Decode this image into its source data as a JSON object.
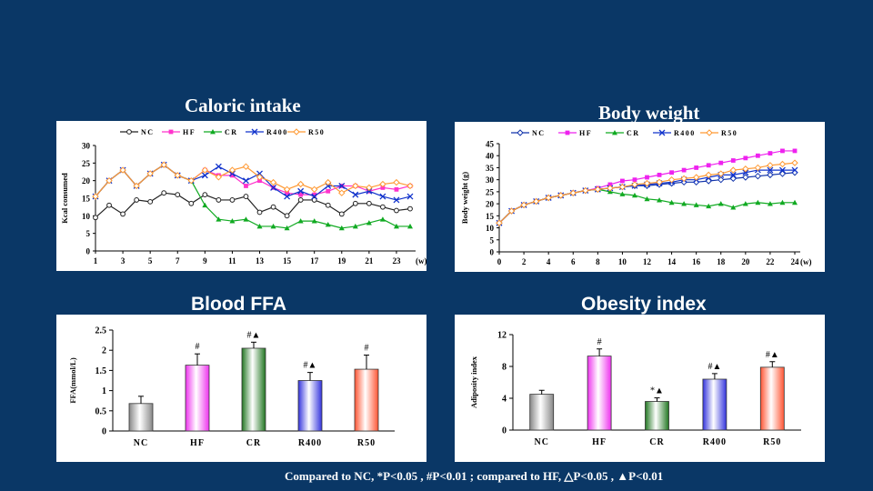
{
  "titles": {
    "caloric": "Caloric intake",
    "body_weight": "Body weight",
    "ffa": "Blood FFA",
    "obesity": "Obesity index"
  },
  "footnote": "Compared to NC, *P<0.05 , #P<0.01 ; compared to HF, △P<0.05 , ▲P<0.01",
  "chart_data": [
    {
      "id": "caloric",
      "type": "line",
      "title": "Caloric intake",
      "ylabel": "Kcal consumed",
      "xunit": "(w)",
      "ylim": [
        0,
        30
      ],
      "yticks": [
        0,
        5,
        10,
        15,
        20,
        25,
        30
      ],
      "xlim": [
        1,
        24
      ],
      "xticks": [
        1,
        3,
        5,
        7,
        9,
        11,
        13,
        15,
        17,
        19,
        21,
        23
      ],
      "x": [
        1,
        2,
        3,
        4,
        5,
        6,
        7,
        8,
        9,
        10,
        11,
        12,
        13,
        14,
        15,
        16,
        17,
        18,
        19,
        20,
        21,
        22,
        23,
        24
      ],
      "legend_position": "top",
      "series": [
        {
          "name": "NC",
          "color": "#222222",
          "marker": "circle",
          "values": [
            9.5,
            13,
            10.5,
            14.5,
            14,
            16.5,
            16,
            13.5,
            16,
            14.5,
            14.5,
            15.5,
            11,
            12.5,
            10,
            14.5,
            14.5,
            13,
            10.5,
            13.5,
            13.5,
            12.5,
            11.5,
            12
          ]
        },
        {
          "name": "HF",
          "color": "#ff33cc",
          "marker": "square",
          "values": [
            15.5,
            20,
            23,
            18.5,
            22,
            24.5,
            21.5,
            20,
            23,
            21.5,
            21.5,
            18.5,
            20,
            18,
            16.5,
            16,
            16,
            17,
            18.5,
            18.5,
            17,
            18,
            17.5,
            18.5
          ]
        },
        {
          "name": "CR",
          "color": "#11aa22",
          "marker": "triangle",
          "values": [
            15.5,
            20,
            23,
            18.5,
            22,
            24.5,
            21.5,
            20,
            13,
            9,
            8.5,
            9,
            7,
            7,
            6.5,
            8.5,
            8.5,
            7.5,
            6.5,
            7,
            8,
            9,
            7,
            7
          ]
        },
        {
          "name": "R400",
          "color": "#1133cc",
          "marker": "x",
          "values": [
            15.5,
            20,
            23,
            18.5,
            22,
            24.5,
            21.5,
            20,
            21.5,
            24,
            22,
            20,
            22,
            18,
            15.5,
            17,
            15.5,
            18.5,
            18.5,
            16,
            17,
            15.5,
            14.5,
            15.5
          ]
        },
        {
          "name": "R50",
          "color": "#ff9933",
          "marker": "diamond",
          "values": [
            15.5,
            20,
            23,
            18.5,
            22,
            24.5,
            21.5,
            20,
            23,
            21,
            23,
            24,
            21,
            19.5,
            17.5,
            19,
            17.5,
            19.5,
            16.5,
            18.5,
            18,
            19,
            19.5,
            18.5
          ]
        }
      ]
    },
    {
      "id": "body_weight",
      "type": "line",
      "title": "Body weight",
      "ylabel": "Body weight (g)",
      "xunit": "(w)",
      "ylim": [
        0,
        45
      ],
      "yticks": [
        0,
        5,
        10,
        15,
        20,
        25,
        30,
        35,
        40,
        45
      ],
      "xlim": [
        0,
        24
      ],
      "xticks": [
        0,
        2,
        4,
        6,
        8,
        10,
        12,
        14,
        16,
        18,
        20,
        22,
        24
      ],
      "x": [
        0,
        1,
        2,
        3,
        4,
        5,
        6,
        7,
        8,
        9,
        10,
        11,
        12,
        13,
        14,
        15,
        16,
        17,
        18,
        19,
        20,
        21,
        22,
        23,
        24
      ],
      "legend_position": "top",
      "series": [
        {
          "name": "NC",
          "color": "#1133aa",
          "marker": "diamond",
          "values": [
            12,
            17,
            19.5,
            21,
            22.5,
            23.5,
            24.5,
            25.5,
            26,
            26.5,
            27,
            27.5,
            27.5,
            28,
            28.5,
            29,
            29,
            29.5,
            30,
            30.5,
            31,
            31.5,
            32,
            32.5,
            33
          ]
        },
        {
          "name": "HF",
          "color": "#ee22ee",
          "marker": "square",
          "values": [
            12,
            17,
            19.5,
            21,
            22.5,
            23.5,
            24.5,
            25.5,
            26.5,
            28,
            29.5,
            30,
            31,
            32,
            33,
            34,
            35,
            36,
            37,
            38,
            39,
            40,
            41,
            42,
            42
          ]
        },
        {
          "name": "CR",
          "color": "#11aa22",
          "marker": "triangle",
          "values": [
            12,
            17,
            19.5,
            21,
            22.5,
            23.5,
            24.5,
            25.5,
            26,
            25,
            24,
            23.5,
            22,
            21.5,
            20.5,
            20,
            19.5,
            19,
            20,
            18.5,
            20,
            20.5,
            20,
            20.5,
            20.5
          ]
        },
        {
          "name": "R400",
          "color": "#1133cc",
          "marker": "x",
          "values": [
            12,
            17,
            19.5,
            21,
            22.5,
            23.5,
            24.5,
            25.5,
            26,
            26.5,
            27,
            27.5,
            28,
            28.5,
            29,
            30,
            30,
            31,
            32,
            32,
            33,
            34,
            34,
            34,
            34
          ]
        },
        {
          "name": "R50",
          "color": "#ff9933",
          "marker": "diamond",
          "values": [
            12,
            17,
            19.5,
            21,
            22.5,
            23.5,
            24.5,
            25.5,
            26,
            26.5,
            27,
            28,
            28.5,
            29,
            30,
            30.5,
            31,
            32,
            32.5,
            34,
            34.5,
            35,
            36,
            36.5,
            37
          ]
        }
      ]
    },
    {
      "id": "ffa",
      "type": "bar",
      "title": "Blood FFA",
      "ylabel": "FFA(mmol/L)",
      "ylim": [
        0,
        2.5
      ],
      "yticks": [
        "0",
        "0.5",
        "1",
        "1.5",
        "2",
        "2.5"
      ],
      "categories": [
        "NC",
        "HF",
        "CR",
        "R400",
        "R50"
      ],
      "values": [
        0.68,
        1.63,
        2.05,
        1.25,
        1.53
      ],
      "errors": [
        0.18,
        0.28,
        0.15,
        0.2,
        0.35
      ],
      "colors": [
        "#888888",
        "#ee33ee",
        "#227722",
        "#3333dd",
        "#ff5533"
      ],
      "annotations": [
        "",
        "#",
        "#▲",
        "#▲",
        "#"
      ]
    },
    {
      "id": "obesity",
      "type": "bar",
      "title": "Obesity index",
      "ylabel": "Adiposity index",
      "ylim": [
        0,
        12
      ],
      "yticks": [
        "0",
        "4",
        "8",
        "12"
      ],
      "categories": [
        "NC",
        "HF",
        "CR",
        "R400",
        "R50"
      ],
      "values": [
        4.5,
        9.3,
        3.6,
        6.4,
        7.9
      ],
      "errors": [
        0.5,
        0.9,
        0.45,
        0.7,
        0.7
      ],
      "colors": [
        "#888888",
        "#ee33ee",
        "#227722",
        "#3333dd",
        "#ff5533"
      ],
      "annotations": [
        "",
        "#",
        "*▲",
        "#▲",
        "#▲"
      ]
    }
  ]
}
